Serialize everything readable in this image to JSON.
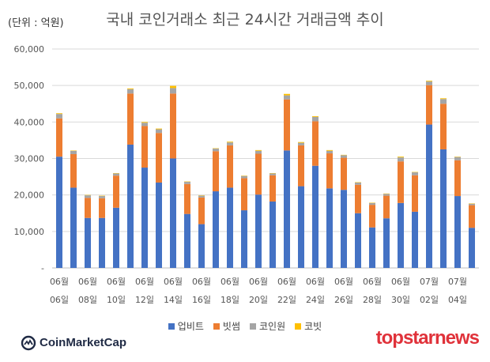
{
  "header": {
    "unit_label": "(단위 : 억원)",
    "title": "국내 코인거래소 최근 24시간 거래금액 추이"
  },
  "chart_data": {
    "type": "bar",
    "stacked": true,
    "title": "국내 코인거래소 최근 24시간 거래금액 추이",
    "ylabel": "(단위 : 억원)",
    "ylim": [
      0,
      60000
    ],
    "yticks": [
      "-",
      "10,000",
      "20,000",
      "30,000",
      "40,000",
      "50,000",
      "60,000"
    ],
    "grid": true,
    "legend_position": "bottom",
    "x_label_rows": [
      [
        "06월",
        "06월",
        "06월",
        "06월",
        "06월",
        "06월",
        "06월",
        "06월",
        "06월",
        "06월",
        "06월",
        "06월",
        "06월",
        "07월",
        "07월"
      ],
      [
        "06일",
        "08일",
        "10일",
        "12일",
        "14일",
        "16일",
        "18일",
        "20일",
        "22일",
        "24일",
        "26일",
        "28일",
        "30일",
        "02일",
        "04일"
      ]
    ],
    "categories": [
      "06/06",
      "06/07",
      "06/08",
      "06/09",
      "06/10",
      "06/11",
      "06/12",
      "06/13",
      "06/14",
      "06/15",
      "06/16",
      "06/17",
      "06/18",
      "06/19",
      "06/20",
      "06/21",
      "06/22",
      "06/23",
      "06/24",
      "06/25",
      "06/26",
      "06/27",
      "06/28",
      "06/29",
      "06/30",
      "07/01",
      "07/02",
      "07/03",
      "07/04",
      "07/05"
    ],
    "series": [
      {
        "name": "업비트",
        "color": "#4472c4",
        "values": [
          30500,
          22000,
          13700,
          13700,
          16500,
          33800,
          27500,
          23400,
          30000,
          14800,
          12000,
          21000,
          22000,
          15800,
          20100,
          18200,
          32200,
          22400,
          28000,
          21800,
          21400,
          15000,
          11100,
          13600,
          17800,
          15400,
          39300,
          32500,
          19700,
          11000
        ]
      },
      {
        "name": "빗썸",
        "color": "#ed7d31",
        "values": [
          10500,
          9200,
          5500,
          5400,
          8800,
          14000,
          11400,
          13600,
          17800,
          8200,
          7300,
          11000,
          11600,
          8800,
          11200,
          7200,
          14000,
          11200,
          12200,
          9600,
          8800,
          7800,
          6200,
          6200,
          11400,
          10000,
          10800,
          12500,
          9800,
          6200
        ]
      },
      {
        "name": "코인원",
        "color": "#a5a5a5",
        "values": [
          1200,
          900,
          700,
          600,
          600,
          1200,
          900,
          1000,
          1500,
          600,
          500,
          700,
          800,
          600,
          800,
          500,
          1100,
          700,
          1200,
          700,
          700,
          600,
          500,
          500,
          1100,
          800,
          1000,
          1300,
          900,
          400
        ]
      },
      {
        "name": "코빗",
        "color": "#ffc000",
        "values": [
          200,
          100,
          100,
          100,
          100,
          200,
          200,
          200,
          600,
          100,
          100,
          100,
          200,
          100,
          200,
          100,
          400,
          200,
          200,
          200,
          100,
          100,
          100,
          100,
          200,
          100,
          200,
          200,
          100,
          100
        ]
      }
    ]
  },
  "branding": {
    "source_logo": "CoinMarketCap",
    "publisher_logo": "topstarnews"
  }
}
